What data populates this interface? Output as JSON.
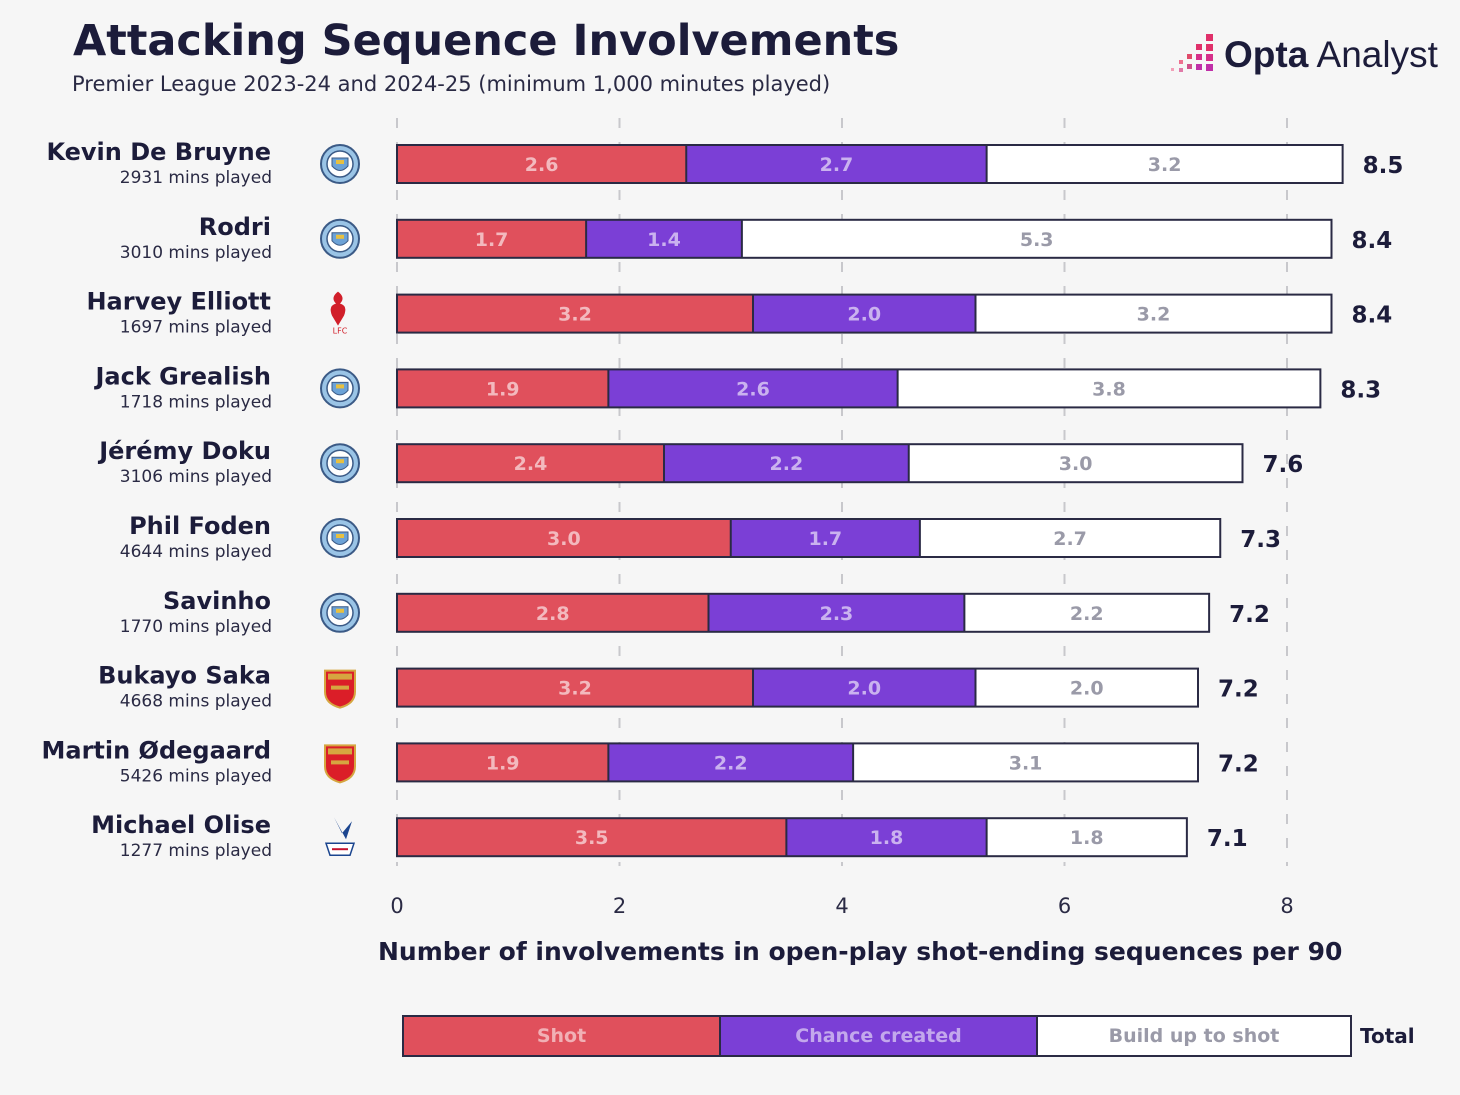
{
  "header": {
    "title": "Attacking Sequence Involvements",
    "subtitle": "Premier League 2023-24 and 2024-25 (minimum 1,000 minutes played)",
    "logo_bold": "Opta",
    "logo_light": " Analyst"
  },
  "legend": {
    "shot": "Shot",
    "chance": "Chance created",
    "build": "Build up to shot",
    "total": "Total"
  },
  "colors": {
    "shot": "#e0505c",
    "chance": "#7b3fd6",
    "build": "#ffffff"
  },
  "chart_data": {
    "type": "bar",
    "orientation": "horizontal",
    "stacked": true,
    "title": "Attacking Sequence Involvements",
    "subtitle": "Premier League 2023-24 and 2024-25 (minimum 1,000 minutes played)",
    "xlabel": "Number of involvements in open-play shot-ending sequences per 90",
    "xlim": [
      0,
      8
    ],
    "xticks": [
      0,
      2,
      4,
      6,
      8
    ],
    "grid": "vertical dashed",
    "legend_position": "bottom",
    "categories": [
      {
        "name": "Kevin De Bruyne",
        "mins": "2931 mins played",
        "club": "manchester-city-badge",
        "total": "8.5"
      },
      {
        "name": "Rodri",
        "mins": "3010 mins played",
        "club": "manchester-city-badge",
        "total": "8.4"
      },
      {
        "name": "Harvey Elliott",
        "mins": "1697 mins played",
        "club": "liverpool-badge",
        "total": "8.4"
      },
      {
        "name": "Jack Grealish",
        "mins": "1718 mins played",
        "club": "manchester-city-badge",
        "total": "8.3"
      },
      {
        "name": "Jérémy Doku",
        "mins": "3106 mins played",
        "club": "manchester-city-badge",
        "total": "7.6"
      },
      {
        "name": "Phil Foden",
        "mins": "4644 mins played",
        "club": "manchester-city-badge",
        "total": "7.3"
      },
      {
        "name": "Savinho",
        "mins": "1770 mins played",
        "club": "manchester-city-badge",
        "total": "7.2"
      },
      {
        "name": "Bukayo Saka",
        "mins": "4668 mins played",
        "club": "arsenal-badge",
        "total": "7.2"
      },
      {
        "name": "Martin Ødegaard",
        "mins": "5426 mins played",
        "club": "arsenal-badge",
        "total": "7.2"
      },
      {
        "name": "Michael Olise",
        "mins": "1277 mins played",
        "club": "crystal-palace-badge",
        "total": "7.1"
      }
    ],
    "series": [
      {
        "name": "Shot",
        "values": [
          2.6,
          1.7,
          3.2,
          1.9,
          2.4,
          3.0,
          2.8,
          3.2,
          1.9,
          3.5
        ]
      },
      {
        "name": "Chance created",
        "values": [
          2.7,
          1.4,
          2.0,
          2.6,
          2.2,
          1.7,
          2.3,
          2.0,
          2.2,
          1.8
        ]
      },
      {
        "name": "Build up to shot",
        "values": [
          3.2,
          5.3,
          3.2,
          3.8,
          3.0,
          2.7,
          2.2,
          2.0,
          3.1,
          1.8
        ]
      }
    ]
  }
}
